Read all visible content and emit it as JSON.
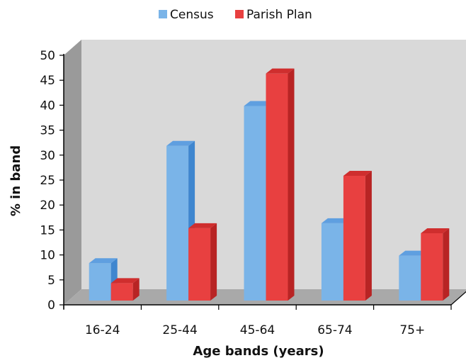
{
  "chart_data": {
    "type": "bar",
    "categories": [
      "16-24",
      "25-44",
      "45-64",
      "65-74",
      "75+"
    ],
    "series": [
      {
        "name": "Census",
        "values": [
          7.5,
          31,
          39,
          15.5,
          9
        ]
      },
      {
        "name": "Parish Plan",
        "values": [
          3.5,
          14.5,
          45.5,
          25,
          13.5
        ]
      }
    ],
    "xlabel": "Age bands (years)",
    "ylabel": "% in band",
    "ylim": [
      0,
      50
    ],
    "yticks": [
      "0",
      "5",
      "10",
      "15",
      "20",
      "25",
      "30",
      "35",
      "40",
      "45",
      "50"
    ],
    "grid": false,
    "legend_position": "top-center",
    "style": "3d-clustered",
    "colors": {
      "census": "#7ab4e8",
      "census_side": "#3f86cf",
      "census_top": "#5f9fe0",
      "parish": "#e84040",
      "parish_side": "#b82424",
      "parish_top": "#cf2e2e",
      "back_wall": "#d9d9d9",
      "side_wall": "#9a9a9a",
      "floor": "#a9a9a9"
    }
  }
}
